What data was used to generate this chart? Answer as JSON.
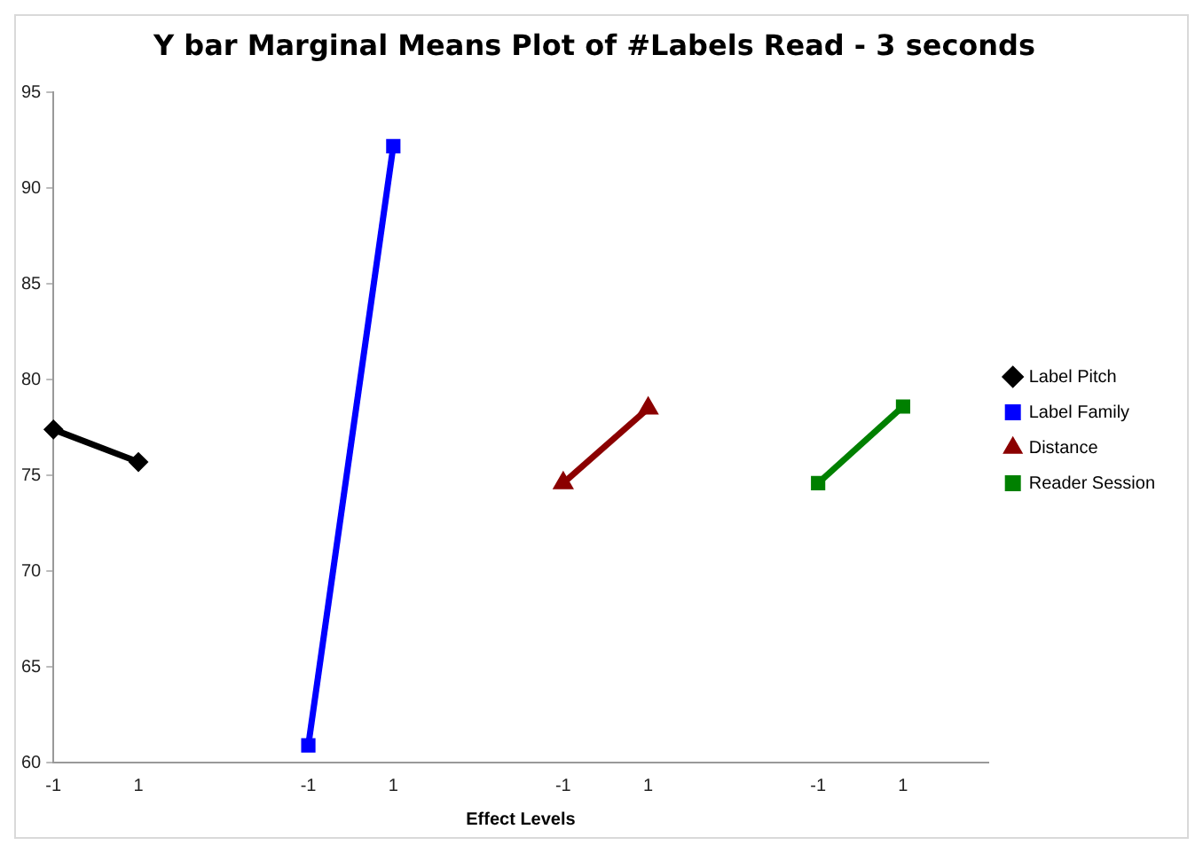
{
  "chart_data": {
    "type": "line",
    "title": "Y bar Marginal Means Plot of #Labels Read - 3 seconds",
    "xlabel": "Effect Levels",
    "categories": [
      "-1",
      "1",
      null,
      "-1",
      "1",
      null,
      "-1",
      "1",
      null,
      "-1",
      "1",
      null
    ],
    "series": [
      {
        "name": "Label Pitch",
        "color": "#000000",
        "marker": "diamond",
        "values": [
          77.4,
          75.7,
          null,
          null,
          null,
          null,
          null,
          null,
          null,
          null,
          null,
          null
        ]
      },
      {
        "name": "Label Family",
        "color": "#0000ff",
        "marker": "square",
        "values": [
          null,
          null,
          null,
          60.9,
          92.2,
          null,
          null,
          null,
          null,
          null,
          null,
          null
        ]
      },
      {
        "name": "Distance",
        "color": "#8b0000",
        "marker": "triangle",
        "values": [
          null,
          null,
          null,
          null,
          null,
          null,
          74.6,
          78.5,
          null,
          null,
          null,
          null
        ]
      },
      {
        "name": "Reader Session",
        "color": "#008000",
        "marker": "square",
        "values": [
          null,
          null,
          null,
          null,
          null,
          null,
          null,
          null,
          null,
          74.6,
          78.6,
          null
        ]
      }
    ],
    "ylim": [
      60,
      95
    ],
    "yticks": [
      60,
      65,
      70,
      75,
      80,
      85,
      90,
      95
    ],
    "grid": false,
    "legend": "right"
  }
}
